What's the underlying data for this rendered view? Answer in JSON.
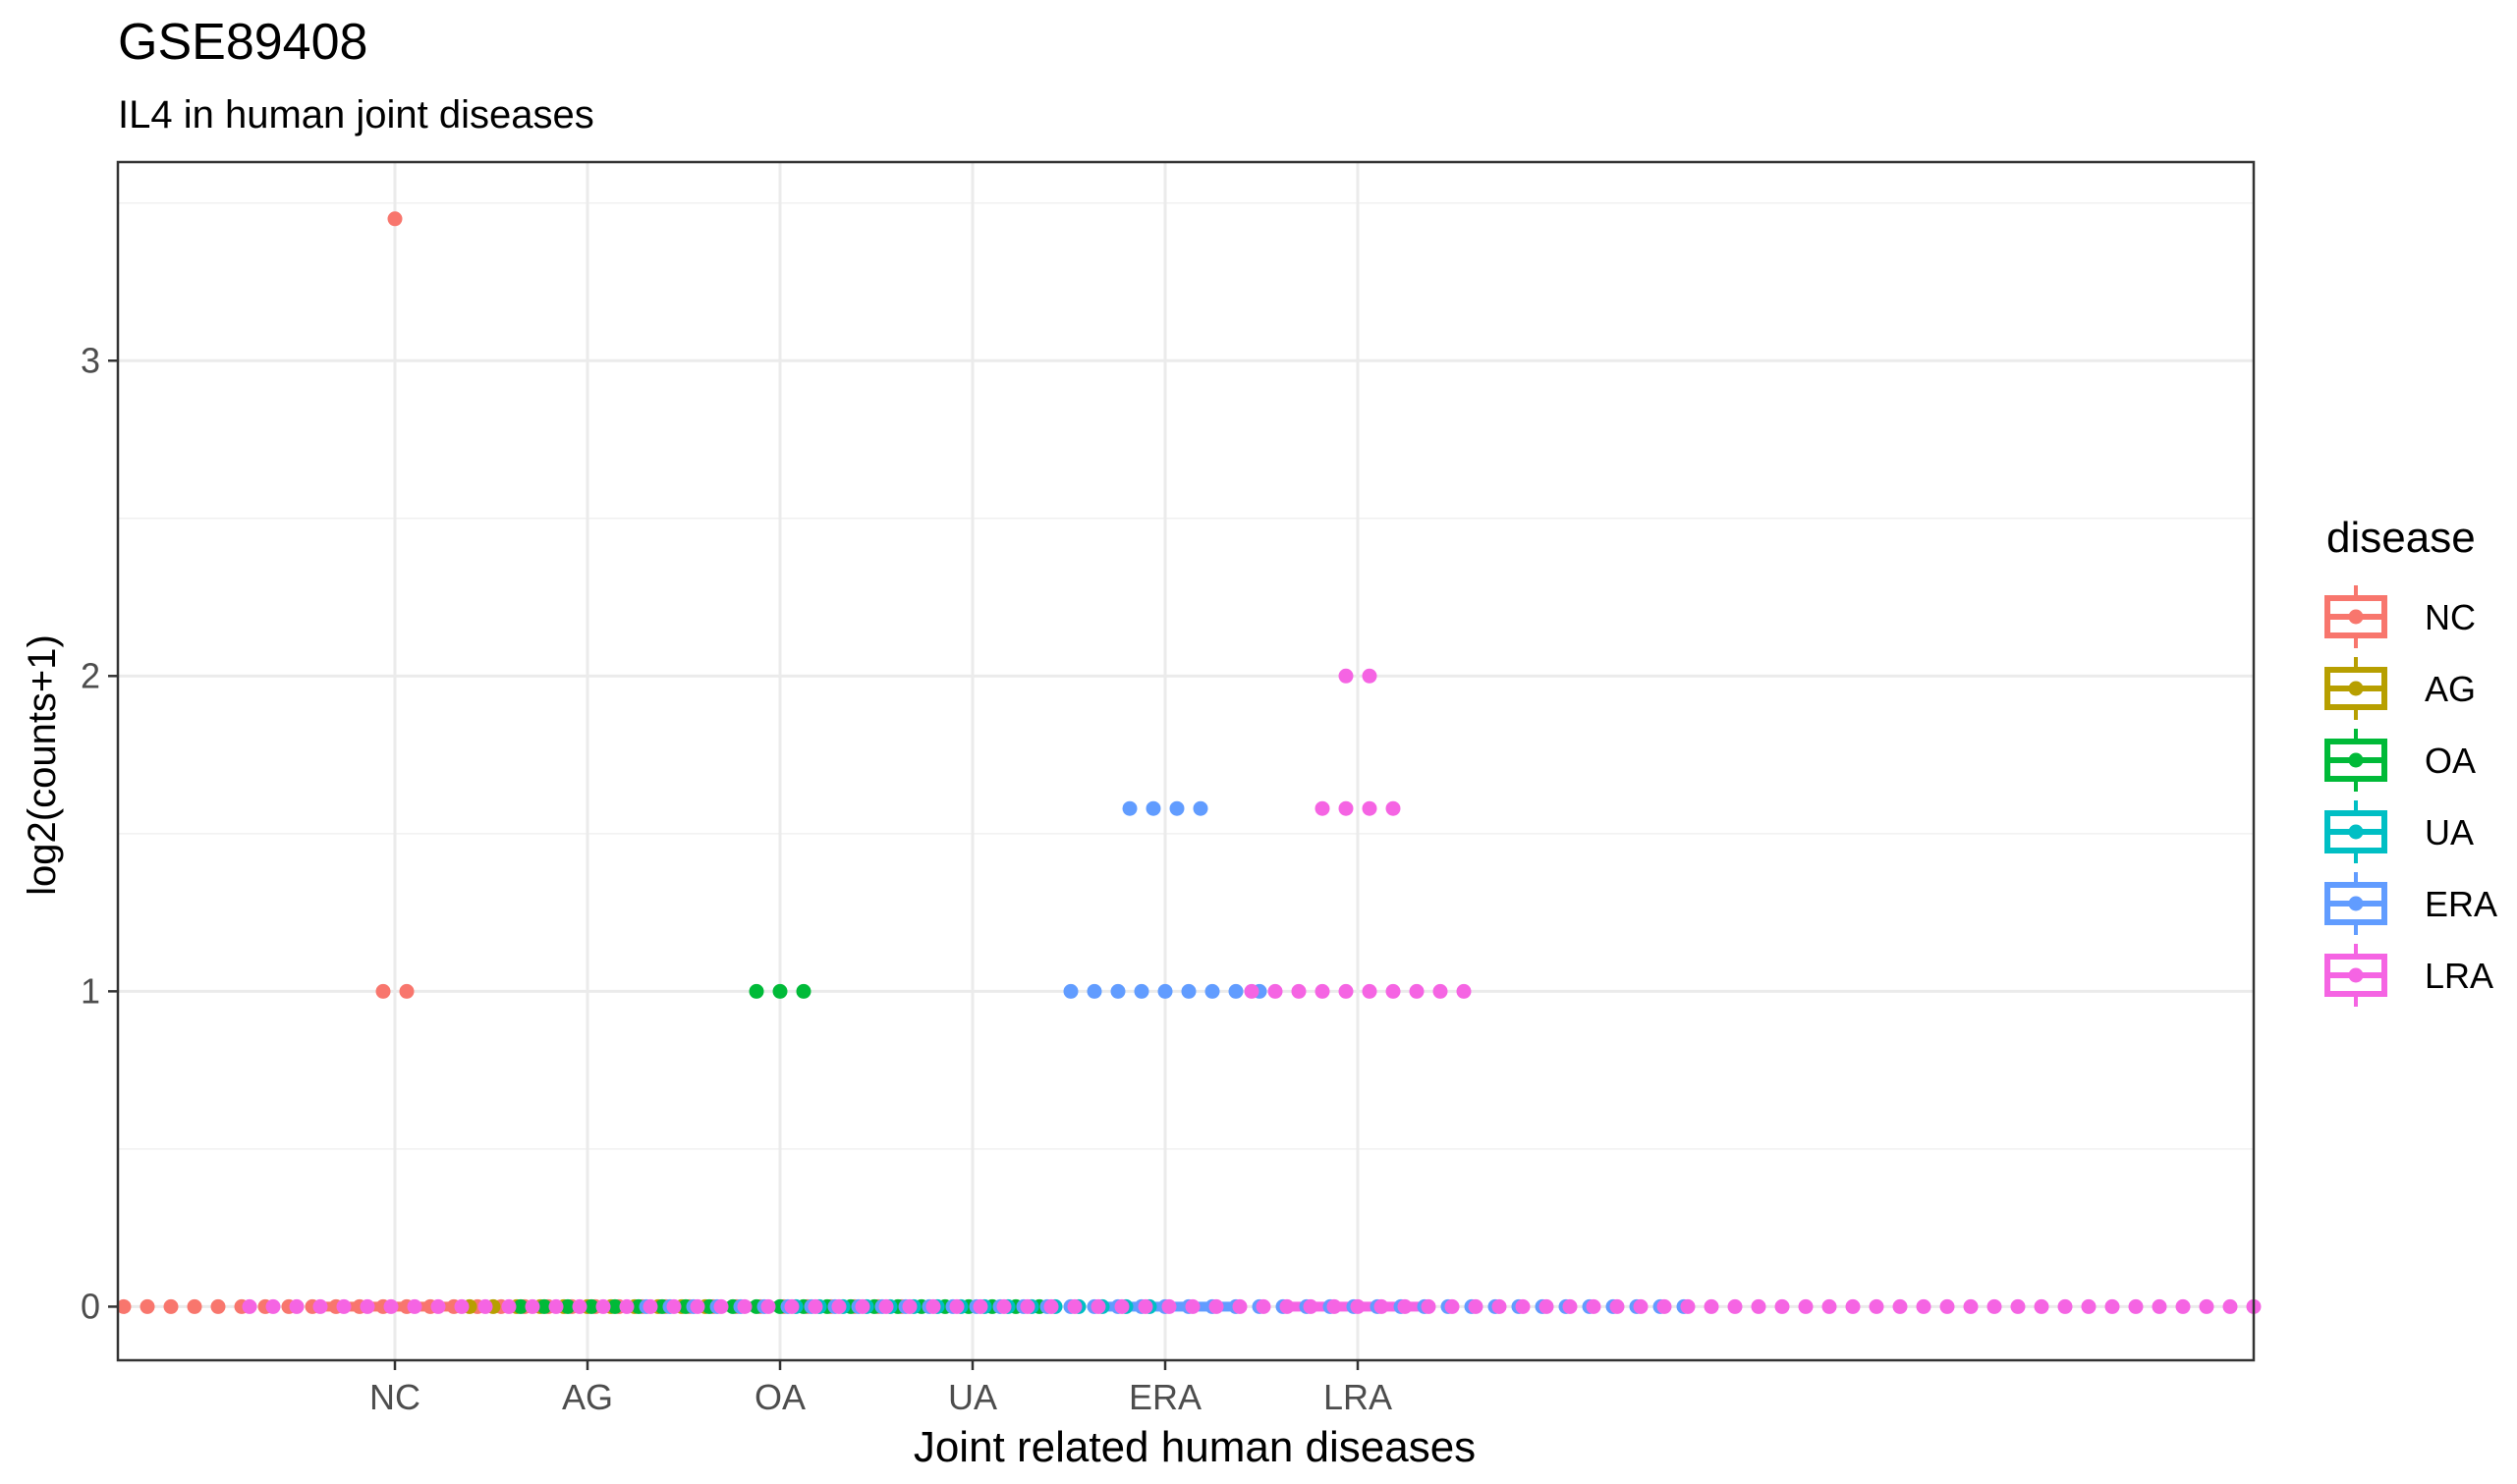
{
  "chart_data": {
    "type": "dotplot-with-boxplot",
    "title": "GSE89408",
    "subtitle": "IL4 in human joint diseases",
    "xlabel": "Joint related human diseases",
    "ylabel": "log2(counts+1)",
    "categories": [
      "NC",
      "AG",
      "OA",
      "UA",
      "ERA",
      "LRA"
    ],
    "ylim": [
      -0.17,
      3.63
    ],
    "y_ticks": [
      0,
      1,
      2,
      3
    ],
    "y_tick_labels": [
      "0",
      "1",
      "2",
      "3"
    ],
    "grid": true,
    "legend": {
      "title": "disease",
      "placement": "right",
      "entries": [
        "NC",
        "AG",
        "OA",
        "UA",
        "ERA",
        "LRA"
      ]
    },
    "colors": {
      "NC": "#F8766D",
      "AG": "#B79F00",
      "OA": "#00BA38",
      "UA": "#00BFC4",
      "ERA": "#619CFF",
      "LRA": "#F564E3"
    },
    "series": [
      {
        "name": "NC",
        "points": [
          {
            "y": 3.45,
            "count": 1
          },
          {
            "y": 1.0,
            "count": 2
          },
          {
            "y": 0.0,
            "count": 44
          }
        ],
        "box": {
          "q1": 0,
          "median": 0,
          "q3": 0
        }
      },
      {
        "name": "AG",
        "points": [
          {
            "y": 0.0,
            "count": 11
          }
        ],
        "box": {
          "q1": 0,
          "median": 0,
          "q3": 0
        }
      },
      {
        "name": "OA",
        "points": [
          {
            "y": 1.0,
            "count": 3
          },
          {
            "y": 0.0,
            "count": 23
          }
        ],
        "box": {
          "q1": 0,
          "median": 0,
          "q3": 0
        }
      },
      {
        "name": "UA",
        "points": [
          {
            "y": 0.0,
            "count": 16
          }
        ],
        "box": {
          "q1": 0,
          "median": 0,
          "q3": 0
        }
      },
      {
        "name": "ERA",
        "points": [
          {
            "y": 1.58,
            "count": 4
          },
          {
            "y": 1.0,
            "count": 9
          },
          {
            "y": 0.0,
            "count": 45
          }
        ],
        "box": {
          "q1": 0,
          "median": 0,
          "q3": 0
        }
      },
      {
        "name": "LRA",
        "points": [
          {
            "y": 2.0,
            "count": 2
          },
          {
            "y": 1.58,
            "count": 4
          },
          {
            "y": 1.0,
            "count": 10
          },
          {
            "y": 0.0,
            "count": 95
          }
        ],
        "box": {
          "q1": 0,
          "median": 0,
          "q3": 0
        }
      }
    ]
  }
}
